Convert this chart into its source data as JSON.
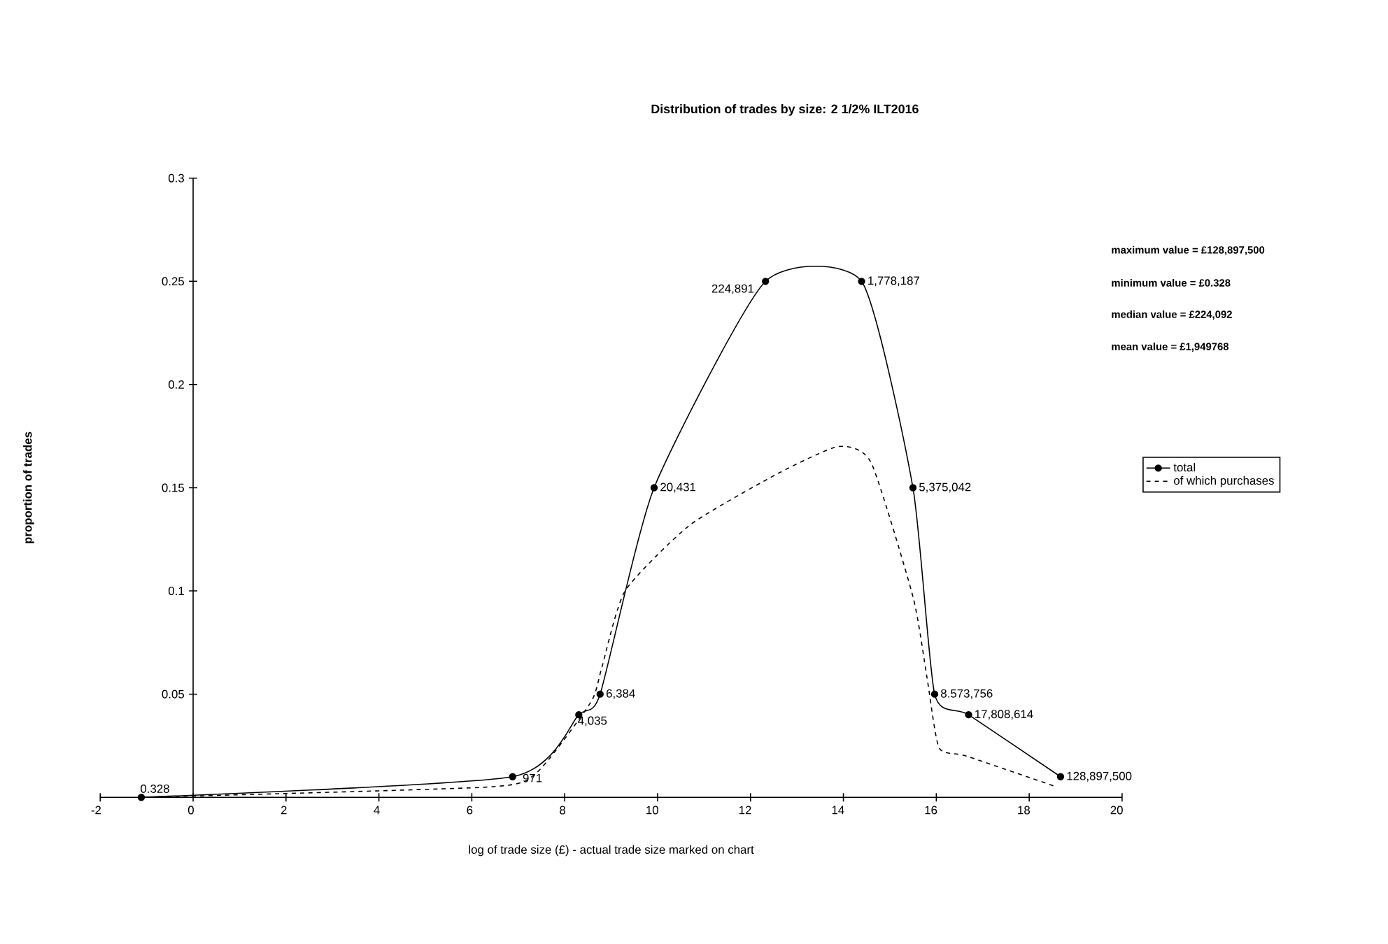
{
  "chart_data": {
    "type": "line",
    "title": "Distribution of trades by size: 2 1/2% ILT2016",
    "xlabel": "log of trade size (£) - actual trade size marked on chart",
    "ylabel": "proportion of trades",
    "xlim": [
      -2,
      20
    ],
    "ylim": [
      0,
      0.3
    ],
    "xticks": [
      -2,
      0,
      2,
      4,
      6,
      8,
      10,
      12,
      14,
      16,
      18,
      20
    ],
    "yticks": [
      0.05,
      0.1,
      0.15,
      0.2,
      0.25,
      0.3
    ],
    "legend": "right",
    "annotations": [
      "maximum value = £128,897,500",
      "minimum value = £0.328",
      "median value = £224,092",
      "mean value = £1,949768",
      {
        "text": "0.328",
        "x": -1.115,
        "y": 0
      },
      {
        "text": "971",
        "x": 6.878,
        "y": 0.01
      },
      {
        "text": "4,035",
        "x": 8.303,
        "y": 0.04
      },
      {
        "text": "6,384",
        "x": 8.762,
        "y": 0.05
      },
      {
        "text": "20,431",
        "x": 9.925,
        "y": 0.15
      },
      {
        "text": "224,891",
        "x": 12.323,
        "y": 0.25
      },
      {
        "text": "1,778,187",
        "x": 14.391,
        "y": 0.25
      },
      {
        "text": "5,375,042",
        "x": 15.497,
        "y": 0.15
      },
      {
        "text": "8.573,756",
        "x": 15.964,
        "y": 0.05
      },
      {
        "text": "17,808,614",
        "x": 16.695,
        "y": 0.04
      },
      {
        "text": "128,897,500",
        "x": 18.675,
        "y": 0.01
      }
    ],
    "series": [
      {
        "name": "total",
        "color": "#000000",
        "marker": "circle",
        "line_style": "solid",
        "x": [
          -1.115,
          6.878,
          8.303,
          8.762,
          9.925,
          12.323,
          14.391,
          15.497,
          15.964,
          16.695,
          18.675
        ],
        "values": [
          0,
          0.01,
          0.04,
          0.05,
          0.15,
          0.25,
          0.25,
          0.15,
          0.05,
          0.04,
          0.01
        ]
      },
      {
        "name": "of which purchases",
        "color": "#000000",
        "marker": "none",
        "line_style": "dashed",
        "x": [
          -1.1,
          6.35,
          7.4,
          8.56,
          8.8,
          9.3,
          10.7,
          12.6,
          13.9,
          14.6,
          15.5,
          15.8,
          16.06,
          16.65,
          18.6
        ],
        "values": [
          0,
          0.005,
          0.012,
          0.046,
          0.063,
          0.1,
          0.132,
          0.157,
          0.17,
          0.162,
          0.097,
          0.058,
          0.024,
          0.02,
          0.005
        ]
      }
    ]
  }
}
